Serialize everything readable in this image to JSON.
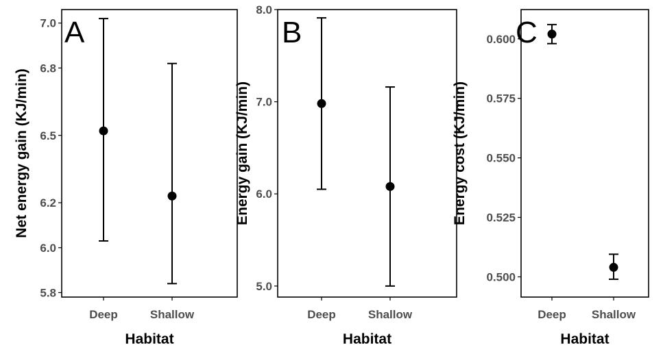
{
  "chart_data": [
    {
      "type": "scatter",
      "panel_label": "A",
      "xlabel": "Habitat",
      "ylabel": "Net energy gain (KJ/min)",
      "categories": [
        "Deep",
        "Shallow"
      ],
      "yticks": [
        "5.8",
        "6.0",
        "6.2",
        "6.5",
        "6.8",
        "7.0"
      ],
      "ylim": [
        5.78,
        7.06
      ],
      "series": [
        {
          "values": [
            6.52,
            6.23
          ],
          "error_low": [
            6.03,
            5.84
          ],
          "error_high": [
            7.02,
            6.82
          ]
        }
      ],
      "grid": false
    },
    {
      "type": "scatter",
      "panel_label": "B",
      "xlabel": "Habitat",
      "ylabel": "Energy gain (KJ/min)",
      "categories": [
        "Deep",
        "Shallow"
      ],
      "yticks": [
        "5.0",
        "6.0",
        "7.0",
        "8.0"
      ],
      "ylim": [
        4.88,
        8.0
      ],
      "series": [
        {
          "values": [
            6.98,
            6.08
          ],
          "error_low": [
            6.05,
            5.0
          ],
          "error_high": [
            7.91,
            7.16
          ]
        }
      ],
      "grid": false
    },
    {
      "type": "scatter",
      "panel_label": "C",
      "xlabel": "Habitat",
      "ylabel": "Energy cost (KJ/min)",
      "categories": [
        "Deep",
        "Shallow"
      ],
      "yticks": [
        "0.500",
        "0.525",
        "0.550",
        "0.575",
        "0.600"
      ],
      "ylim": [
        0.4915,
        0.6123
      ],
      "series": [
        {
          "values": [
            0.602,
            0.504
          ],
          "error_low": [
            0.598,
            0.499
          ],
          "error_high": [
            0.606,
            0.5095
          ]
        }
      ],
      "grid": false
    }
  ]
}
